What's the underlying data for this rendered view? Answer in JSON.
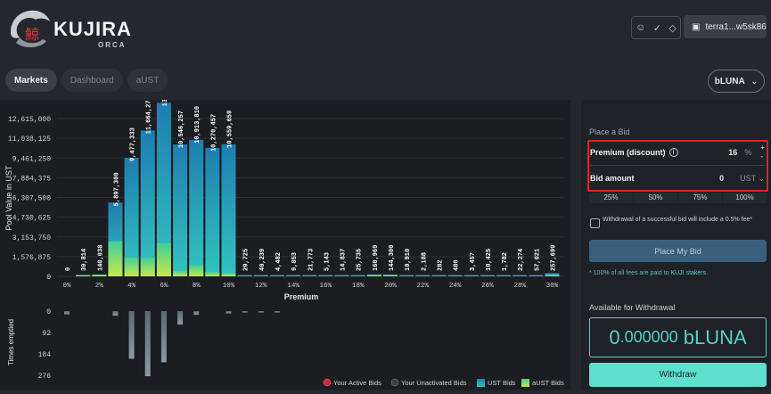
{
  "header": {
    "brand": "KUJIRA",
    "brand_sub": "ORCA",
    "brand_kanji": "鯨",
    "wallet_address": "terra1...w5sk86",
    "icons": [
      "user-icon",
      "check-circle-icon",
      "diamond-icon",
      "wallet-icon"
    ]
  },
  "tabs": [
    {
      "label": "Markets",
      "active": true
    },
    {
      "label": "Dashboard",
      "active": false
    },
    {
      "label": "aUST",
      "active": false
    }
  ],
  "asset_select": {
    "label": "bLUNA"
  },
  "colors": {
    "background": "#24272d",
    "chart_bg": "#1b1d21",
    "accent": "#58d0c9",
    "ust_bid": "#2aa3c8",
    "aust_bid": "#b8e04a",
    "active_bid": "#d9252a",
    "highlight": "#d9252a"
  },
  "chart_data": [
    {
      "type": "bar",
      "ylabel": "Pool Value in UST",
      "xlabel": "Premium",
      "yticks": [
        "12,615,000",
        "11,038,125",
        "9,461,250",
        "7,884,375",
        "6,307,500",
        "4,730,625",
        "3,153,750",
        "1,576,875",
        "0"
      ],
      "ylim": [
        0,
        12615000
      ],
      "xticks": [
        "0%",
        "2%",
        "4%",
        "6%",
        "8%",
        "10%",
        "12%",
        "14%",
        "16%",
        "18%",
        "20%",
        "22%",
        "24%",
        "26%",
        "28%",
        "30%"
      ],
      "categories": [
        "0%",
        "1%",
        "2%",
        "3%",
        "4%",
        "5%",
        "6%",
        "7%",
        "8%",
        "9%",
        "10%",
        "11%",
        "12%",
        "13%",
        "14%",
        "15%",
        "16%",
        "17%",
        "18%",
        "19%",
        "20%",
        "21%",
        "22%",
        "23%",
        "24%",
        "25%",
        "26%",
        "27%",
        "28%",
        "29%",
        "30%"
      ],
      "value_labels": [
        "0",
        "30,814",
        "140,038",
        "5,897,300",
        "9,477,333",
        "11,664,273",
        "13,874,616",
        "10,546,257",
        "10,913,810",
        "10,270,457",
        "10,559,659",
        "29,725",
        "40,239",
        "4,482",
        "9,853",
        "21,773",
        "5,143",
        "14,837",
        "25,735",
        "160,969",
        "144,300",
        "10,910",
        "2,188",
        "282",
        "480",
        "3,457",
        "10,425",
        "1,782",
        "22,274",
        "57,021",
        "257,699"
      ],
      "values": [
        0,
        30814,
        140038,
        5897300,
        9477333,
        11664273,
        13874616,
        10546257,
        10913810,
        10270457,
        10559659,
        29725,
        40239,
        4482,
        9853,
        21773,
        5143,
        14837,
        25735,
        160969,
        144300,
        10910,
        2188,
        282,
        480,
        3457,
        10425,
        1782,
        22274,
        57021,
        257699
      ],
      "aust_values": [
        0,
        30814,
        140038,
        2800000,
        1500000,
        1500000,
        2650000,
        450000,
        900000,
        350000,
        250000,
        0,
        0,
        0,
        0,
        0,
        0,
        0,
        0,
        60000,
        40000,
        0,
        0,
        0,
        0,
        0,
        0,
        0,
        0,
        0,
        100000
      ],
      "series": [
        {
          "name": "UST Bids"
        },
        {
          "name": "aUST Bids"
        }
      ]
    },
    {
      "type": "bar",
      "ylabel": "Times emptied",
      "yticks": [
        "0",
        "92",
        "184",
        "276"
      ],
      "ylim": [
        0,
        276
      ],
      "values": [
        14,
        0,
        0,
        20,
        205,
        280,
        220,
        58,
        16,
        0,
        10,
        6,
        5,
        5,
        0,
        0
      ]
    }
  ],
  "legend": [
    {
      "label": "Your Active Bids"
    },
    {
      "label": "Your Unactivated Bids"
    },
    {
      "label": "UST Bids"
    },
    {
      "label": "aUST Bids"
    }
  ],
  "place_bid": {
    "title": "Place a Bid",
    "premium_label": "Premium (discount)",
    "premium_value": "16",
    "premium_unit": "%",
    "increment": "+",
    "decrement": "-",
    "bid_label": "Bid amount",
    "bid_value": "0",
    "bid_unit": "UST",
    "percent_buttons": [
      "25%",
      "50%",
      "75%",
      "100%"
    ],
    "withdraw_note": "Withdrawal of a successful bid will include a 0.5% fee*",
    "place_button": "Place My Bid",
    "fee_note_prefix": "* 100% of all fees are paid to ",
    "fee_note_link": "KUJI stakers",
    "fee_note_suffix": "."
  },
  "withdrawal": {
    "title": "Available for Withdrawal",
    "amount_int": "0",
    "amount_dec": ".000000",
    "amount_unit": "bLUNA",
    "button": "Withdraw"
  }
}
